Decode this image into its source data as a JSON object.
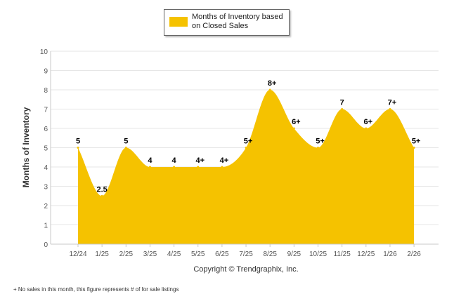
{
  "chart_data": {
    "type": "area",
    "title": "",
    "xlabel": "",
    "ylabel": "Months of Inventory",
    "ylim": [
      0,
      10
    ],
    "yticks": [
      "0",
      "1",
      "2",
      "3",
      "4",
      "5",
      "6",
      "7",
      "8",
      "9",
      "10"
    ],
    "grid": true,
    "legend": "top-center",
    "categories": [
      "12/24",
      "1/25",
      "2/25",
      "3/25",
      "4/25",
      "5/25",
      "6/25",
      "7/25",
      "8/25",
      "9/25",
      "10/25",
      "11/25",
      "12/25",
      "1/26",
      "2/26"
    ],
    "series": [
      {
        "name": "Months of Inventory based on Closed Sales",
        "color": "#f5c200",
        "values": [
          5,
          2.5,
          5,
          4,
          4,
          4,
          4,
          5,
          8,
          6,
          5,
          7,
          6,
          7,
          5
        ],
        "labels": [
          "5",
          "2.5",
          "5",
          "4",
          "4",
          "4+",
          "4+",
          "5+",
          "8+",
          "6+",
          "5+",
          "7",
          "6+",
          "7+",
          "5+"
        ]
      }
    ]
  },
  "legend": {
    "line1": "Months of Inventory based",
    "line2": "on Closed Sales"
  },
  "copyright": "Copyright © Trendgraphix, Inc.",
  "footnote": "+  No sales in this month, this figure represents # of for sale listings"
}
